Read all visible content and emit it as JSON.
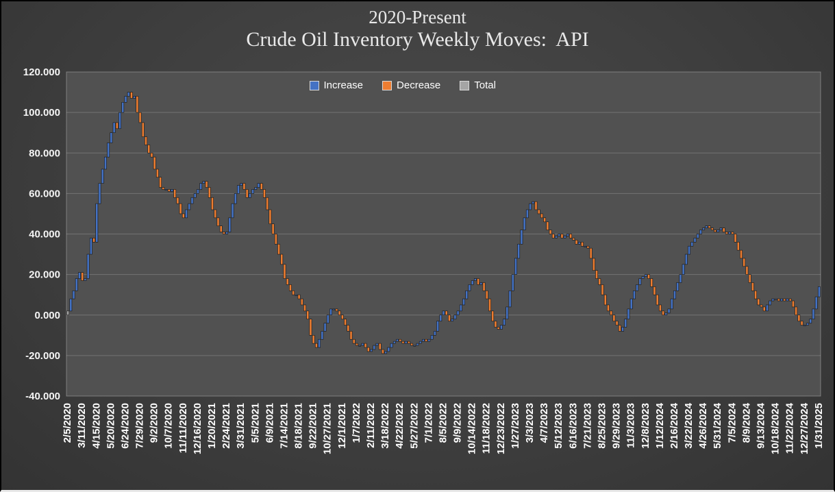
{
  "chart_data": {
    "type": "waterfall",
    "title_line1": "2020-Present",
    "title_line2": "Crude Oil Inventory Weekly Moves:  API",
    "legend": [
      {
        "label": "Increase",
        "color": "#4472C4"
      },
      {
        "label": "Decrease",
        "color": "#ED7D31"
      },
      {
        "label": "Total",
        "color": "#A5A5A5"
      }
    ],
    "grid": true,
    "legend_position": "top-center-inside",
    "y_axis": {
      "min": -40,
      "max": 120,
      "step": 20,
      "ticks": [
        "120.000",
        "100.000",
        "80.000",
        "60.000",
        "40.000",
        "20.000",
        "0.000",
        "-20.000",
        "-40.000"
      ]
    },
    "x_tick_interval": 5,
    "x_tick_labels": [
      "2/5/2020",
      "3/11/2020",
      "4/15/2020",
      "5/20/2020",
      "6/24/2020",
      "7/29/2020",
      "9/2/2020",
      "10/7/2020",
      "11/11/2020",
      "12/16/2020",
      "1/20/2021",
      "2/24/2021",
      "3/31/2021",
      "5/5/2021",
      "6/9/2021",
      "7/14/2021",
      "8/18/2021",
      "9/22/2021",
      "10/27/2021",
      "12/1/2021",
      "1/7/2022",
      "2/11/2022",
      "3/18/2022",
      "4/22/2022",
      "5/27/2022",
      "7/1/2022",
      "8/5/2022",
      "9/9/2022",
      "10/14/2022",
      "11/18/2022",
      "12/23/2022",
      "1/27/2023",
      "3/3/2023",
      "4/7/2023",
      "5/12/2023",
      "6/16/2023",
      "7/21/2023",
      "8/25/2023",
      "9/29/2023",
      "11/3/2023",
      "12/8/2023",
      "1/12/2024",
      "2/16/2024",
      "3/22/2024",
      "4/26/2024",
      "5/31/2024",
      "7/5/2024",
      "8/9/2024",
      "9/13/2024",
      "10/18/2024",
      "11/22/2024",
      "12/27/2024",
      "1/31/2025"
    ],
    "cumulative_weekly": [
      2,
      8,
      12,
      18,
      21,
      17,
      18,
      30,
      38,
      36,
      55,
      65,
      72,
      78,
      85,
      90,
      95,
      92,
      100,
      105,
      108,
      110,
      107,
      108,
      100,
      95,
      88,
      84,
      80,
      78,
      72,
      68,
      63,
      62,
      62,
      61,
      62,
      58,
      55,
      50,
      48,
      52,
      55,
      58,
      60,
      62,
      65,
      66,
      63,
      58,
      52,
      48,
      44,
      41,
      40,
      41,
      48,
      55,
      60,
      64,
      65,
      62,
      58,
      60,
      62,
      63,
      65,
      62,
      58,
      52,
      45,
      40,
      35,
      30,
      25,
      18,
      15,
      12,
      10,
      10,
      8,
      5,
      2,
      -2,
      -10,
      -14,
      -16,
      -12,
      -8,
      -4,
      0,
      3,
      3,
      2,
      0,
      -2,
      -5,
      -8,
      -12,
      -14,
      -15,
      -15,
      -14,
      -16,
      -18,
      -17,
      -15,
      -14,
      -17,
      -19,
      -18,
      -16,
      -14,
      -13,
      -12,
      -13,
      -14,
      -13,
      -14,
      -15,
      -15,
      -14,
      -13,
      -12,
      -13,
      -12,
      -10,
      -8,
      -3,
      0,
      2,
      0,
      -3,
      -2,
      0,
      2,
      5,
      8,
      12,
      15,
      17,
      18,
      15,
      16,
      12,
      8,
      2,
      -3,
      -6,
      -7,
      -5,
      -2,
      4,
      12,
      20,
      28,
      35,
      42,
      48,
      52,
      55,
      56,
      52,
      50,
      48,
      46,
      42,
      40,
      38,
      39,
      40,
      38,
      39,
      40,
      38,
      37,
      35,
      36,
      34,
      34,
      33,
      28,
      22,
      18,
      15,
      10,
      5,
      2,
      0,
      -3,
      -5,
      -8,
      -6,
      -2,
      3,
      8,
      12,
      15,
      18,
      19,
      20,
      18,
      14,
      10,
      5,
      2,
      0,
      1,
      3,
      8,
      12,
      16,
      20,
      25,
      30,
      34,
      36,
      38,
      40,
      42,
      43,
      44,
      43,
      42,
      41,
      42,
      43,
      41,
      40,
      41,
      40,
      36,
      32,
      28,
      24,
      20,
      16,
      12,
      8,
      5,
      4,
      2,
      5,
      7,
      8,
      8,
      7,
      8,
      7,
      8,
      7,
      4,
      0,
      -3,
      -5,
      -5,
      -4,
      -2,
      3,
      9,
      14
    ],
    "style": {
      "plot_bg": "#515151",
      "gridline": "rgba(255,255,255,0.20)",
      "plot_border": "rgba(255,255,255,0.30)",
      "bar_outline": "#161616",
      "axis_text": "#f5f5f5"
    }
  }
}
